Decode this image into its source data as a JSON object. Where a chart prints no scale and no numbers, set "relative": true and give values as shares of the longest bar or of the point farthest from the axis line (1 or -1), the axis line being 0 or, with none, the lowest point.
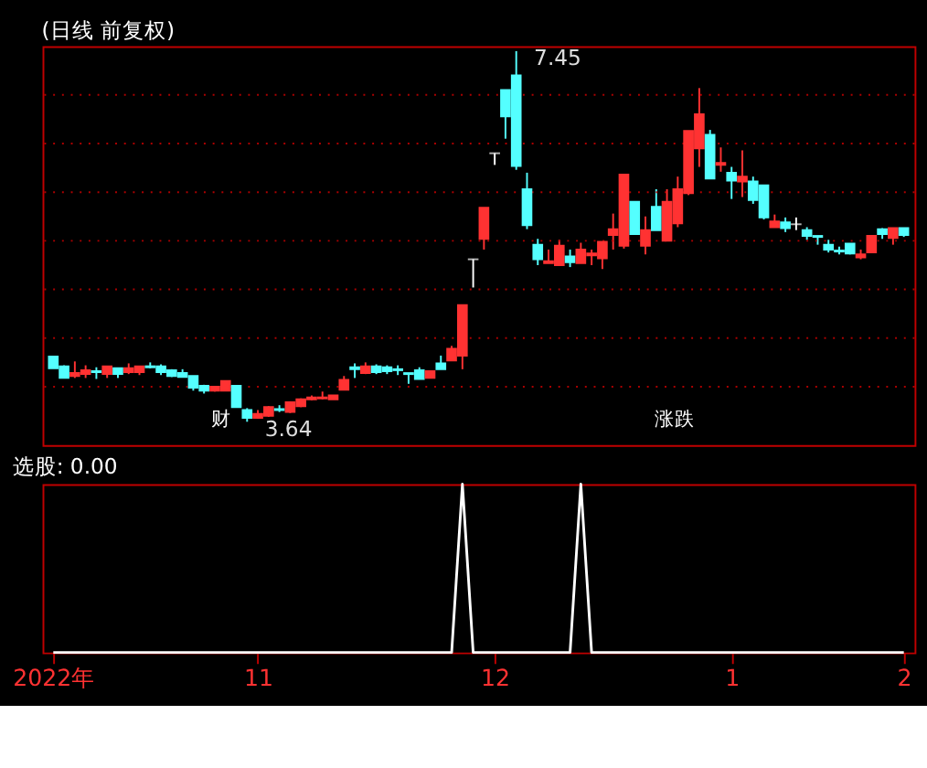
{
  "chart_data": [
    {
      "type": "candlestick",
      "title": "(日线 前复权)",
      "categories": [
        null,
        null,
        null,
        null,
        null,
        null,
        null,
        null,
        null,
        null,
        null,
        null,
        null,
        null,
        null,
        null,
        null,
        null,
        null,
        null,
        null,
        null,
        null,
        null,
        null,
        null,
        null,
        null,
        null,
        null,
        null,
        null,
        null,
        null,
        null,
        null,
        null,
        null,
        null,
        null,
        null,
        null,
        null,
        null,
        null,
        null,
        null,
        null,
        null,
        null,
        null,
        null,
        null,
        null,
        null,
        null,
        null,
        null,
        null,
        null,
        null,
        null,
        null,
        null,
        null,
        null,
        null,
        null,
        null,
        null,
        null,
        null,
        null,
        null,
        null,
        null,
        null,
        null,
        null,
        null
      ],
      "ohlc": [
        [
          4.31,
          4.31,
          4.19,
          4.19
        ],
        [
          4.21,
          4.22,
          4.09,
          4.09
        ],
        [
          4.11,
          4.26,
          4.09,
          4.14
        ],
        [
          4.13,
          4.22,
          4.09,
          4.17
        ],
        [
          4.16,
          4.2,
          4.08,
          4.15
        ],
        [
          4.13,
          4.21,
          4.09,
          4.21
        ],
        [
          4.19,
          4.19,
          4.09,
          4.13
        ],
        [
          4.15,
          4.24,
          4.13,
          4.19
        ],
        [
          4.15,
          4.21,
          4.12,
          4.21
        ],
        [
          4.21,
          4.25,
          4.19,
          4.2
        ],
        [
          4.21,
          4.23,
          4.12,
          4.15
        ],
        [
          4.17,
          4.18,
          4.1,
          4.11
        ],
        [
          4.14,
          4.18,
          4.1,
          4.1
        ],
        [
          4.11,
          4.11,
          3.96,
          3.99
        ],
        [
          4.01,
          4.02,
          3.93,
          3.96
        ],
        [
          3.96,
          4.0,
          3.95,
          4.0
        ],
        [
          3.96,
          4.06,
          3.96,
          4.06
        ],
        [
          4.01,
          4.01,
          3.79,
          3.79
        ],
        [
          3.76,
          3.78,
          3.64,
          3.68
        ],
        [
          3.68,
          3.76,
          3.67,
          3.72
        ],
        [
          3.7,
          3.8,
          3.69,
          3.79
        ],
        [
          3.77,
          3.81,
          3.74,
          3.76
        ],
        [
          3.74,
          3.85,
          3.73,
          3.84
        ],
        [
          3.8,
          3.88,
          3.79,
          3.87
        ],
        [
          3.87,
          3.91,
          3.86,
          3.89
        ],
        [
          3.88,
          3.95,
          3.87,
          3.89
        ],
        [
          3.87,
          3.91,
          3.87,
          3.91
        ],
        [
          3.97,
          4.11,
          3.97,
          4.07
        ],
        [
          4.2,
          4.24,
          4.09,
          4.18
        ],
        [
          4.14,
          4.25,
          4.13,
          4.21
        ],
        [
          4.21,
          4.23,
          4.13,
          4.15
        ],
        [
          4.2,
          4.22,
          4.13,
          4.16
        ],
        [
          4.18,
          4.22,
          4.12,
          4.17
        ],
        [
          4.14,
          4.14,
          4.03,
          4.13
        ],
        [
          4.17,
          4.2,
          4.08,
          4.08
        ],
        [
          4.09,
          4.16,
          4.09,
          4.16
        ],
        [
          4.24,
          4.32,
          4.18,
          4.18
        ],
        [
          4.27,
          4.42,
          4.27,
          4.39
        ],
        [
          4.32,
          4.84,
          4.18,
          4.84
        ],
        [
          5.31,
          5.31,
          5.02,
          5.31
        ],
        [
          5.52,
          5.84,
          5.41,
          5.84
        ],
        [
          6.4,
          6.4,
          6.28,
          6.4
        ],
        [
          7.05,
          7.05,
          6.55,
          6.78
        ],
        [
          7.2,
          7.45,
          6.23,
          6.27
        ],
        [
          6.03,
          6.2,
          5.62,
          5.66
        ],
        [
          5.46,
          5.52,
          5.25,
          5.31
        ],
        [
          5.27,
          5.41,
          5.27,
          5.29
        ],
        [
          5.25,
          5.51,
          5.25,
          5.45
        ],
        [
          5.34,
          5.41,
          5.23,
          5.28
        ],
        [
          5.27,
          5.48,
          5.27,
          5.41
        ],
        [
          5.35,
          5.41,
          5.25,
          5.37
        ],
        [
          5.32,
          5.49,
          5.21,
          5.49
        ],
        [
          5.56,
          5.78,
          5.41,
          5.62
        ],
        [
          5.45,
          6.18,
          5.42,
          6.18
        ],
        [
          5.9,
          5.9,
          5.57,
          5.57
        ],
        [
          5.45,
          5.75,
          5.36,
          5.61
        ],
        [
          5.85,
          6.03,
          5.61,
          5.61
        ],
        [
          5.5,
          6.03,
          5.5,
          5.9
        ],
        [
          5.68,
          6.16,
          5.64,
          6.03
        ],
        [
          5.99,
          6.63,
          5.97,
          6.63
        ],
        [
          6.45,
          7.07,
          6.26,
          6.8
        ],
        [
          6.59,
          6.64,
          6.14,
          6.14
        ],
        [
          6.28,
          6.46,
          6.21,
          6.3
        ],
        [
          6.2,
          6.26,
          5.93,
          6.12
        ],
        [
          6.11,
          6.43,
          5.95,
          6.16
        ],
        [
          6.11,
          6.16,
          5.88,
          5.92
        ],
        [
          6.07,
          6.07,
          5.72,
          5.74
        ],
        [
          5.64,
          5.77,
          5.64,
          5.7
        ],
        [
          5.69,
          5.74,
          5.59,
          5.63
        ],
        [
          5.67,
          5.74,
          5.61,
          5.67
        ],
        [
          5.61,
          5.64,
          5.51,
          5.55
        ],
        [
          5.55,
          5.55,
          5.46,
          5.54
        ],
        [
          5.46,
          5.51,
          5.38,
          5.41
        ],
        [
          5.4,
          5.44,
          5.36,
          5.39
        ],
        [
          5.47,
          5.47,
          5.36,
          5.37
        ],
        [
          5.33,
          5.41,
          5.31,
          5.36
        ],
        [
          5.38,
          5.55,
          5.38,
          5.55
        ],
        [
          5.62,
          5.63,
          5.52,
          5.57
        ],
        [
          5.53,
          5.63,
          5.46,
          5.63
        ],
        [
          5.63,
          5.63,
          5.54,
          5.56
        ]
      ],
      "colors": [
        "#54ffff",
        "#54ffff",
        "#ff3232",
        "#ff3232",
        "#54ffff",
        "#ff3232",
        "#54ffff",
        "#ff3232",
        "#ff3232",
        "#54ffff",
        "#54ffff",
        "#54ffff",
        "#54ffff",
        "#54ffff",
        "#54ffff",
        "#ff3232",
        "#ff3232",
        "#54ffff",
        "#54ffff",
        "#ff3232",
        "#ff3232",
        "#54ffff",
        "#ff3232",
        "#ff3232",
        "#ff3232",
        "#ff3232",
        "#ff3232",
        "#ff3232",
        "#54ffff",
        "#ff3232",
        "#54ffff",
        "#54ffff",
        "#54ffff",
        "#54ffff",
        "#54ffff",
        "#ff3232",
        "#54ffff",
        "#ff3232",
        "#ff3232",
        "#ffffff",
        "#ff3232",
        "#ffffff",
        "#54ffff",
        "#54ffff",
        "#54ffff",
        "#54ffff",
        "#ff3232",
        "#ff3232",
        "#54ffff",
        "#ff3232",
        "#ff3232",
        "#ff3232",
        "#ff3232",
        "#ff3232",
        "#54ffff",
        "#ff3232",
        "#54ffff",
        "#ff3232",
        "#ff3232",
        "#ff3232",
        "#ff3232",
        "#54ffff",
        "#ff3232",
        "#54ffff",
        "#ff3232",
        "#54ffff",
        "#54ffff",
        "#ff3232",
        "#54ffff",
        "#ffffff",
        "#54ffff",
        "#54ffff",
        "#54ffff",
        "#54ffff",
        "#54ffff",
        "#ff3232",
        "#ff3232",
        "#54ffff",
        "#ff3232",
        "#54ffff"
      ],
      "ylim": [
        3.4,
        7.5
      ],
      "yticks": [
        {
          "value": 4.0,
          "label": null
        },
        {
          "value": 4.5,
          "label": null
        },
        {
          "value": 5.0,
          "label": null
        },
        {
          "value": 5.5,
          "label": null
        },
        {
          "value": 6.0,
          "label": null
        },
        {
          "value": 6.5,
          "label": null
        },
        {
          "value": 7.0,
          "label": null
        }
      ],
      "grid": "y",
      "tick_labels": false,
      "annotations": [
        "7.45",
        "3.64",
        "财",
        "涨跌"
      ]
    },
    {
      "type": "line",
      "title": "选股: 0.00",
      "relative": true,
      "color": "#ffffff",
      "tick_labels": "x",
      "categories": [
        "2022年",
        null,
        null,
        null,
        null,
        null,
        null,
        null,
        null,
        null,
        null,
        null,
        null,
        null,
        null,
        null,
        null,
        null,
        null,
        "11",
        null,
        null,
        null,
        null,
        null,
        null,
        null,
        null,
        null,
        null,
        null,
        null,
        null,
        null,
        null,
        null,
        null,
        null,
        null,
        null,
        null,
        "12",
        null,
        null,
        null,
        null,
        null,
        null,
        null,
        null,
        null,
        null,
        null,
        null,
        null,
        null,
        null,
        null,
        null,
        null,
        null,
        null,
        null,
        "1",
        null,
        null,
        null,
        null,
        null,
        null,
        null,
        null,
        null,
        null,
        null,
        null,
        null,
        null,
        null,
        "2"
      ],
      "values": [
        0,
        0,
        0,
        0,
        0,
        0,
        0,
        0,
        0,
        0,
        0,
        0,
        0,
        0,
        0,
        0,
        0,
        0,
        0,
        0,
        0,
        0,
        0,
        0,
        0,
        0,
        0,
        0,
        0,
        0,
        0,
        0,
        0,
        0,
        0,
        0,
        0,
        0,
        1,
        0,
        0,
        0,
        0,
        0,
        0,
        0,
        0,
        0,
        0,
        1,
        0,
        0,
        0,
        0,
        0,
        0,
        0,
        0,
        0,
        0,
        0,
        0,
        0,
        0,
        0,
        0,
        0,
        0,
        0,
        0,
        0,
        0,
        0,
        0,
        0,
        0,
        0,
        0,
        0,
        0
      ]
    }
  ]
}
